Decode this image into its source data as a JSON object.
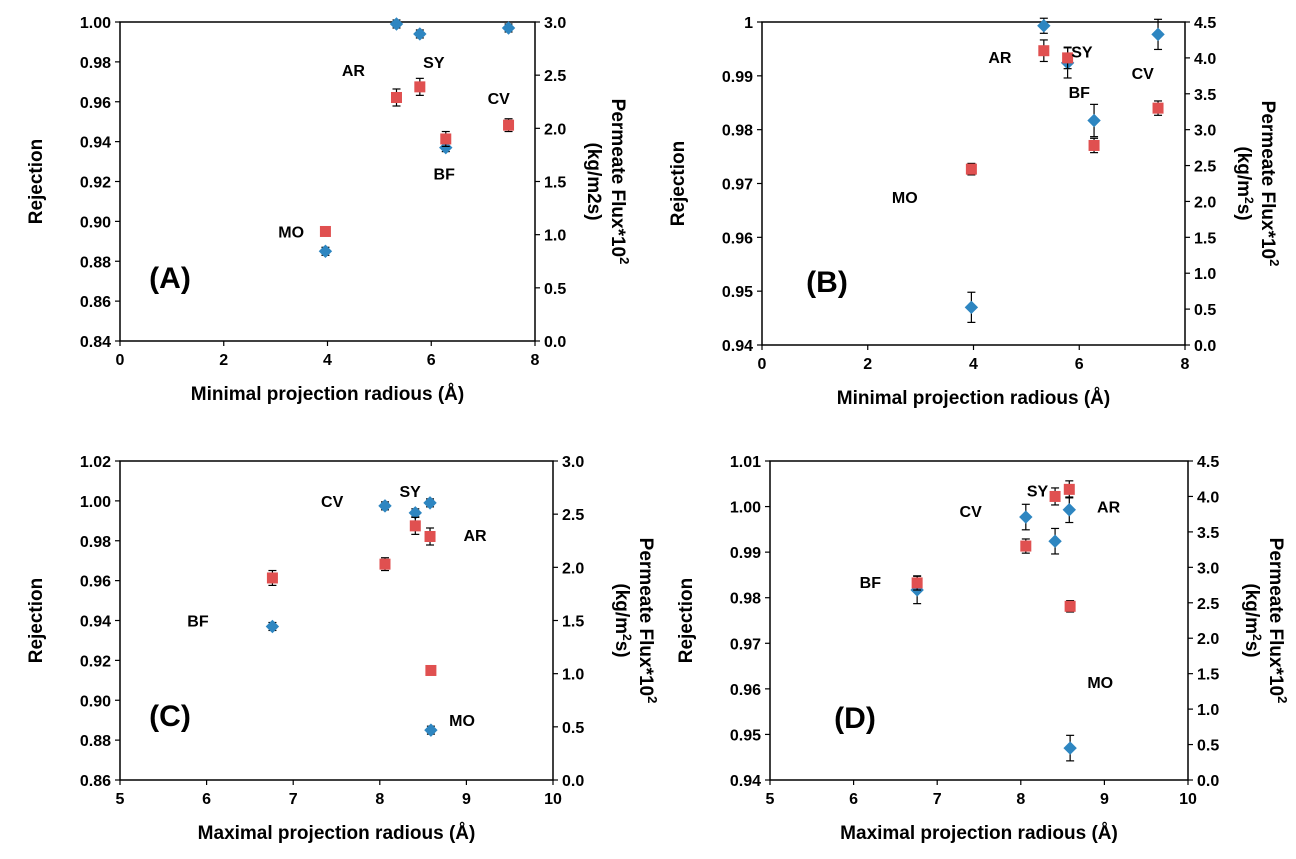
{
  "colors": {
    "rejection_marker": "#2E86C1",
    "flux_marker": "#E05050",
    "axis": "#000000",
    "errorbar": "#000000"
  },
  "chart_data": [
    {
      "type": "scatter",
      "panel_label": "(A)",
      "xlabel": "Minimal projection radious (Å)",
      "ylabel": "Rejection",
      "y2label_line1": "Permeate Flux*10",
      "y2label_sup": "2",
      "y2label_line2": "(kg/m2s)",
      "xlim": [
        0,
        8
      ],
      "ylim": [
        0.84,
        1.0
      ],
      "y2lim": [
        0.0,
        3.0
      ],
      "x_ticks": [
        "0",
        "2",
        "4",
        "6",
        "8"
      ],
      "y_ticks": [
        "0.84",
        "0.86",
        "0.88",
        "0.90",
        "0.92",
        "0.94",
        "0.96",
        "0.98",
        "1.00"
      ],
      "y2_ticks": [
        "0.0",
        "0.5",
        "1.0",
        "1.5",
        "2.0",
        "2.5",
        "3.0"
      ],
      "series": [
        {
          "axis": "left",
          "marker": "diamond",
          "points": [
            {
              "x": 3.96,
              "y": 0.885,
              "err": 0.002
            },
            {
              "x": 5.33,
              "y": 0.999,
              "err": 0.002
            },
            {
              "x": 5.78,
              "y": 0.994,
              "err": 0.002
            },
            {
              "x": 6.28,
              "y": 0.937,
              "err": 0.002
            },
            {
              "x": 7.49,
              "y": 0.997,
              "err": 0.002
            }
          ]
        },
        {
          "axis": "right",
          "marker": "square",
          "points": [
            {
              "x": 3.96,
              "y": 1.03,
              "err": 0.0
            },
            {
              "x": 5.33,
              "y": 2.29,
              "err": 0.08
            },
            {
              "x": 5.78,
              "y": 2.39,
              "err": 0.08
            },
            {
              "x": 6.28,
              "y": 1.9,
              "err": 0.07
            },
            {
              "x": 7.49,
              "y": 2.03,
              "err": 0.06
            }
          ]
        }
      ],
      "annotations": [
        {
          "text": "MO",
          "x": 3.3,
          "y": 0.895
        },
        {
          "text": "AR",
          "x": 4.5,
          "y": 0.976
        },
        {
          "text": "SY",
          "x": 6.05,
          "y": 0.98
        },
        {
          "text": "BF",
          "x": 6.25,
          "y": 0.924
        },
        {
          "text": "CV",
          "x": 7.3,
          "y": 0.962
        }
      ]
    },
    {
      "type": "scatter",
      "panel_label": "(B)",
      "xlabel": "Minimal projection radious (Å)",
      "ylabel": "Rejection",
      "y2label_line1": "Permeate Flux*10",
      "y2label_sup": "2",
      "y2label_line2": "(kg/m",
      "y2label_sup2": "2",
      "y2label_line2b": "s)",
      "xlim": [
        0,
        8
      ],
      "ylim": [
        0.94,
        1.0
      ],
      "y2lim": [
        0.0,
        4.5
      ],
      "x_ticks": [
        "0",
        "2",
        "4",
        "6",
        "8"
      ],
      "y_ticks": [
        "0.94",
        "0.95",
        "0.96",
        "0.97",
        "0.98",
        "0.99",
        "1"
      ],
      "y2_ticks": [
        "0.0",
        "0.5",
        "1.0",
        "1.5",
        "2.0",
        "2.5",
        "3.0",
        "3.5",
        "4.0",
        "4.5"
      ],
      "series": [
        {
          "axis": "left",
          "marker": "diamond",
          "points": [
            {
              "x": 3.96,
              "y": 0.947,
              "err": 0.0028
            },
            {
              "x": 5.33,
              "y": 0.9993,
              "err": 0.0014
            },
            {
              "x": 5.78,
              "y": 0.9924,
              "err": 0.0028
            },
            {
              "x": 6.28,
              "y": 0.9817,
              "err": 0.003
            },
            {
              "x": 7.49,
              "y": 0.9977,
              "err": 0.0028
            }
          ]
        },
        {
          "axis": "right",
          "marker": "square",
          "points": [
            {
              "x": 3.96,
              "y": 2.45,
              "err": 0.08
            },
            {
              "x": 5.33,
              "y": 4.1,
              "err": 0.15
            },
            {
              "x": 5.78,
              "y": 4.0,
              "err": 0.15
            },
            {
              "x": 6.28,
              "y": 2.78,
              "err": 0.1
            },
            {
              "x": 7.49,
              "y": 3.3,
              "err": 0.1
            }
          ]
        }
      ],
      "annotations": [
        {
          "text": "MO",
          "x": 2.7,
          "y": 0.9675
        },
        {
          "text": "AR",
          "x": 4.5,
          "y": 0.9935
        },
        {
          "text": "SY",
          "x": 6.05,
          "y": 0.9945
        },
        {
          "text": "BF",
          "x": 6.0,
          "y": 0.987
        },
        {
          "text": "CV",
          "x": 7.2,
          "y": 0.9905
        }
      ]
    },
    {
      "type": "scatter",
      "panel_label": "(C)",
      "xlabel": "Maximal projection radious (Å)",
      "ylabel": "Rejection",
      "y2label_line1": "Permeate Flux*10",
      "y2label_sup": "2",
      "y2label_line2": "(kg/m",
      "y2label_sup2": "2",
      "y2label_line2b": "s)",
      "xlim": [
        5,
        10
      ],
      "ylim": [
        0.86,
        1.02
      ],
      "y2lim": [
        0.0,
        3.0
      ],
      "x_ticks": [
        "5",
        "6",
        "7",
        "8",
        "9",
        "10"
      ],
      "y_ticks": [
        "0.86",
        "0.88",
        "0.90",
        "0.92",
        "0.94",
        "0.96",
        "0.98",
        "1.00",
        "1.02"
      ],
      "y2_ticks": [
        "0.0",
        "0.5",
        "1.0",
        "1.5",
        "2.0",
        "2.5",
        "3.0"
      ],
      "series": [
        {
          "axis": "left",
          "marker": "diamond",
          "points": [
            {
              "x": 6.76,
              "y": 0.937,
              "err": 0.002
            },
            {
              "x": 8.06,
              "y": 0.9975,
              "err": 0.002
            },
            {
              "x": 8.41,
              "y": 0.994,
              "err": 0.002
            },
            {
              "x": 8.58,
              "y": 0.999,
              "err": 0.002
            },
            {
              "x": 8.59,
              "y": 0.885,
              "err": 0.002
            }
          ]
        },
        {
          "axis": "right",
          "marker": "square",
          "points": [
            {
              "x": 6.76,
              "y": 1.9,
              "err": 0.07
            },
            {
              "x": 8.06,
              "y": 2.03,
              "err": 0.06
            },
            {
              "x": 8.41,
              "y": 2.39,
              "err": 0.08
            },
            {
              "x": 8.58,
              "y": 2.29,
              "err": 0.08
            },
            {
              "x": 8.59,
              "y": 1.03,
              "err": 0.0
            }
          ]
        }
      ],
      "annotations": [
        {
          "text": "BF",
          "x": 5.9,
          "y": 0.94
        },
        {
          "text": "CV",
          "x": 7.45,
          "y": 1.0
        },
        {
          "text": "SY",
          "x": 8.35,
          "y": 1.005
        },
        {
          "text": "AR",
          "x": 9.1,
          "y": 0.983
        },
        {
          "text": "MO",
          "x": 8.95,
          "y": 0.89
        }
      ]
    },
    {
      "type": "scatter",
      "panel_label": "(D)",
      "xlabel": "Maximal projection radious (Å)",
      "ylabel": "Rejection",
      "y2label_line1": "Permeate Flux*10",
      "y2label_sup": "2",
      "y2label_line2": "(kg/m",
      "y2label_sup2": "2",
      "y2label_line2b": "s)",
      "xlim": [
        5,
        10
      ],
      "ylim": [
        0.94,
        1.01
      ],
      "y2lim": [
        0.0,
        4.5
      ],
      "x_ticks": [
        "5",
        "6",
        "7",
        "8",
        "9",
        "10"
      ],
      "y_ticks": [
        "0.94",
        "0.95",
        "0.96",
        "0.97",
        "0.98",
        "0.99",
        "1.00",
        "1.01"
      ],
      "y2_ticks": [
        "0.0",
        "0.5",
        "1.0",
        "1.5",
        "2.0",
        "2.5",
        "3.0",
        "3.5",
        "4.0",
        "4.5"
      ],
      "series": [
        {
          "axis": "left",
          "marker": "diamond",
          "points": [
            {
              "x": 6.76,
              "y": 0.9817,
              "err": 0.003
            },
            {
              "x": 8.06,
              "y": 0.9977,
              "err": 0.0028
            },
            {
              "x": 8.41,
              "y": 0.9924,
              "err": 0.0028
            },
            {
              "x": 8.58,
              "y": 0.9993,
              "err": 0.0028
            },
            {
              "x": 8.59,
              "y": 0.947,
              "err": 0.0028
            }
          ]
        },
        {
          "axis": "right",
          "marker": "square",
          "points": [
            {
              "x": 6.76,
              "y": 2.78,
              "err": 0.1
            },
            {
              "x": 8.06,
              "y": 3.3,
              "err": 0.1
            },
            {
              "x": 8.41,
              "y": 4.0,
              "err": 0.12
            },
            {
              "x": 8.58,
              "y": 4.1,
              "err": 0.12
            },
            {
              "x": 8.59,
              "y": 2.45,
              "err": 0.08
            }
          ]
        }
      ],
      "annotations": [
        {
          "text": "BF",
          "x": 6.2,
          "y": 0.9835
        },
        {
          "text": "CV",
          "x": 7.4,
          "y": 0.999
        },
        {
          "text": "SY",
          "x": 8.2,
          "y": 1.0035
        },
        {
          "text": "AR",
          "x": 9.05,
          "y": 1.0
        },
        {
          "text": "MO",
          "x": 8.95,
          "y": 0.9615
        }
      ]
    }
  ]
}
